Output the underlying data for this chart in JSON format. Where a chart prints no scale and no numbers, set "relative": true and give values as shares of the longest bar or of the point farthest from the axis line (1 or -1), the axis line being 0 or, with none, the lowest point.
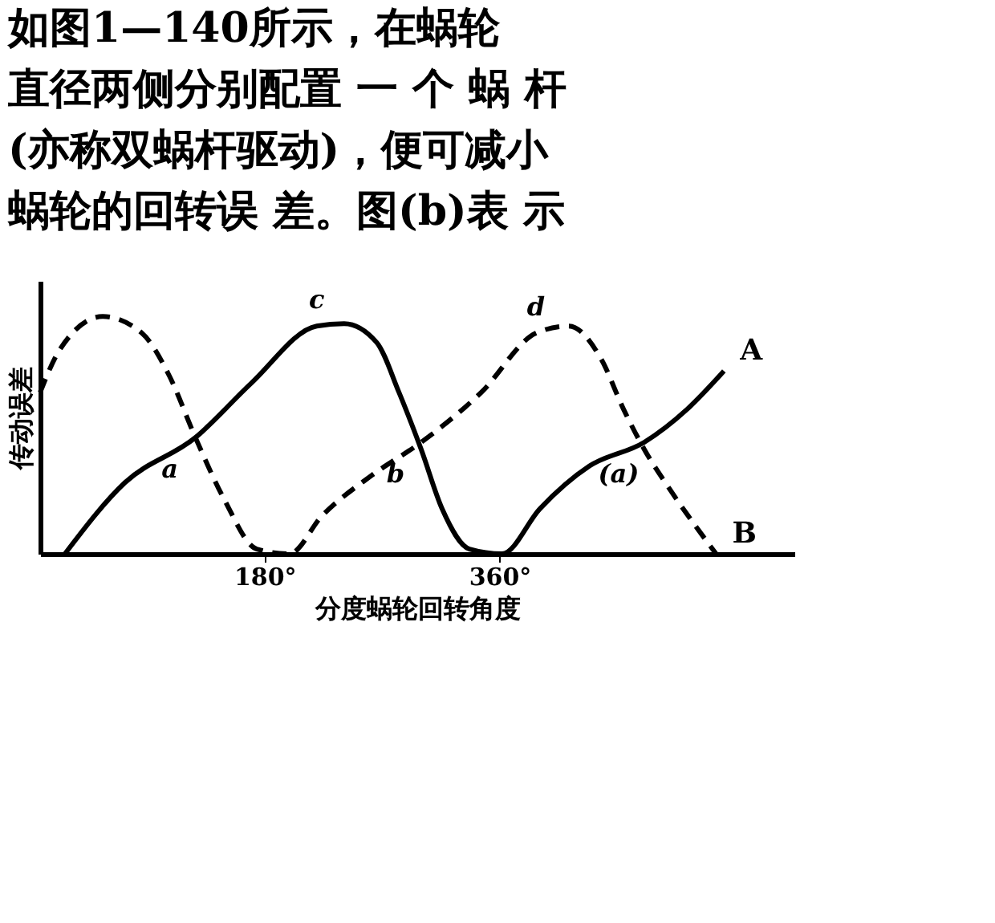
{
  "chart_data": {
    "type": "line",
    "relative": true,
    "title": [
      "如图1—140所示，在蜗轮",
      "直径两侧分别配置 一 个 蜗 杆",
      "(亦称双蜗杆驱动)，便可减小",
      "蜗轮的回转误 差。图(b)表 示"
    ],
    "xlabel": "分度蜗轮回转角度",
    "ylabel": "传动误差",
    "xlim": [
      8,
      586
    ],
    "xticks": [
      {
        "value": 180,
        "label": "180°"
      },
      {
        "value": 360,
        "label": "360°"
      }
    ],
    "grid": false,
    "legend": false,
    "marker": "none",
    "series": [
      {
        "name": "A",
        "color": "#000000",
        "line_style": "solid",
        "x": [
          27,
          73,
          127,
          170,
          220,
          241,
          266,
          283,
          300,
          316,
          337,
          362,
          391,
          429,
          471,
          504,
          532
        ],
        "values": [
          0,
          0.3,
          0.49,
          0.72,
          0.96,
          0.97,
          0.89,
          0.68,
          0.44,
          0.19,
          0.02,
          0,
          0.19,
          0.37,
          0.47,
          0.61,
          0.77
        ]
      },
      {
        "name": "B",
        "color": "#000000",
        "line_style": "dashed",
        "x": [
          8,
          23,
          56,
          86,
          107,
          127,
          149,
          174,
          199,
          224,
          262,
          300,
          346,
          388,
          413,
          438,
          455,
          471,
          492,
          526
        ],
        "values": [
          0.68,
          0.86,
          1,
          0.93,
          0.75,
          0.49,
          0.23,
          0.02,
          0,
          0.16,
          0.33,
          0.47,
          0.68,
          0.93,
          0.96,
          0.82,
          0.61,
          0.44,
          0.26,
          0
        ]
      }
    ],
    "annotations": [
      {
        "text": "a",
        "x": 127,
        "y": 0.49
      },
      {
        "text": "b",
        "x": 300,
        "y": 0.47
      },
      {
        "text": "c",
        "x": 220,
        "y": 0.96
      },
      {
        "text": "d",
        "x": 388,
        "y": 0.93
      },
      {
        "text": "(a)",
        "x": 471,
        "y": 0.47
      }
    ]
  }
}
